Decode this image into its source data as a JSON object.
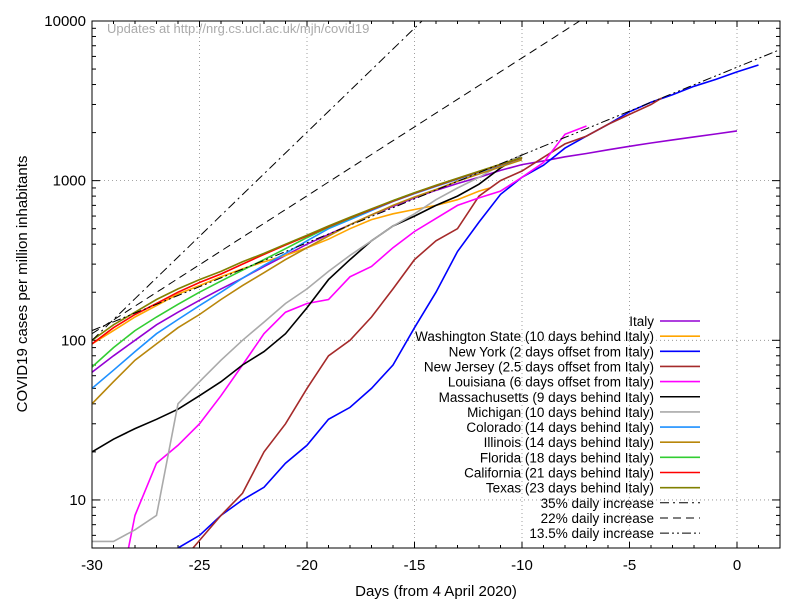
{
  "chart_data": {
    "type": "line",
    "yscale": "log",
    "xlabel": "Days (from 4 April 2020)",
    "ylabel": "COVID19 cases per million inhabitants",
    "annotation": "Updates at http://nrg.cs.ucl.ac.uk/mjh/covid19",
    "xlim": [
      -30,
      2
    ],
    "ylim": [
      5,
      10000
    ],
    "xticks": [
      -30,
      -25,
      -20,
      -15,
      -10,
      -5,
      0
    ],
    "yticks": [
      10,
      100,
      1000,
      10000
    ],
    "legend_position": "bottom-right",
    "series": [
      {
        "name": "Italy",
        "color": "#9400d3",
        "dash": "solid",
        "x": [
          -30,
          -29,
          -28,
          -27,
          -26,
          -25,
          -24,
          -23,
          -22,
          -21,
          -20,
          -19,
          -18,
          -17,
          -16,
          -15,
          -14,
          -13,
          -12,
          -11,
          -10,
          -9,
          -8,
          -7,
          -6,
          -5,
          -4,
          -3,
          -2,
          -1,
          0
        ],
        "y": [
          63,
          80,
          100,
          125,
          150,
          178,
          210,
          245,
          290,
          340,
          400,
          460,
          530,
          610,
          690,
          780,
          870,
          960,
          1050,
          1160,
          1260,
          1330,
          1410,
          1480,
          1560,
          1640,
          1720,
          1800,
          1880,
          1960,
          2050
        ]
      },
      {
        "name": "Washington  State (10 days behind Italy)",
        "color": "#ffa500",
        "dash": "solid",
        "x": [
          -30,
          -29,
          -28,
          -27,
          -26,
          -25,
          -24,
          -23,
          -22,
          -21,
          -20,
          -19,
          -18,
          -17,
          -16,
          -15,
          -14,
          -13,
          -12,
          -11.5
        ],
        "y": [
          95,
          115,
          140,
          165,
          195,
          220,
          250,
          280,
          310,
          340,
          380,
          430,
          500,
          570,
          620,
          660,
          700,
          760,
          860,
          900
        ]
      },
      {
        "name": "New York (2 days offset from Italy)",
        "color": "#0000ff",
        "dash": "solid",
        "x": [
          -26,
          -25,
          -24,
          -23,
          -22,
          -21,
          -20,
          -19,
          -18,
          -17,
          -16,
          -15,
          -14,
          -13,
          -12,
          -11,
          -10,
          -9,
          -8,
          -7,
          -6,
          -5,
          -4,
          -3,
          -2,
          -1,
          0,
          1
        ],
        "y": [
          5,
          6,
          8,
          10,
          12,
          17,
          22,
          32,
          38,
          50,
          70,
          120,
          200,
          360,
          550,
          820,
          1050,
          1250,
          1600,
          1900,
          2250,
          2700,
          3100,
          3450,
          3900,
          4300,
          4800,
          5300
        ]
      },
      {
        "name": "New Jersey (2.5 days offset from Italy)",
        "color": "#a52a2a",
        "dash": "solid",
        "x": [
          -25.3,
          -24,
          -23,
          -22,
          -21,
          -20,
          -19,
          -18,
          -17,
          -16,
          -15,
          -14,
          -13,
          -12,
          -11,
          -10,
          -9,
          -8,
          -7,
          -6,
          -5,
          -4,
          -3.5
        ],
        "y": [
          5,
          8,
          11,
          20,
          30,
          50,
          80,
          100,
          140,
          210,
          320,
          420,
          500,
          800,
          1000,
          1150,
          1400,
          1700,
          1900,
          2250,
          2600,
          3000,
          3300
        ]
      },
      {
        "name": "Louisiana (6 days offset from Italy)",
        "color": "#ff00ff",
        "dash": "solid",
        "x": [
          -28.3,
          -28,
          -27,
          -26,
          -25,
          -24,
          -23,
          -22,
          -21,
          -20,
          -19,
          -18,
          -17,
          -16,
          -15,
          -14,
          -13,
          -12,
          -11,
          -10,
          -9,
          -8,
          -7
        ],
        "y": [
          5,
          8,
          17,
          22,
          30,
          45,
          70,
          110,
          150,
          170,
          180,
          250,
          290,
          380,
          480,
          580,
          700,
          780,
          860,
          1050,
          1300,
          1950,
          2200
        ]
      },
      {
        "name": "Massachusetts (9 days behind Italy)",
        "color": "#000000",
        "dash": "solid",
        "x": [
          -30,
          -29,
          -28,
          -27,
          -26,
          -25,
          -24,
          -23,
          -22,
          -21,
          -20,
          -19,
          -18,
          -17,
          -16,
          -15,
          -14,
          -13,
          -12,
          -11,
          -10
        ],
        "y": [
          20,
          24,
          28,
          32,
          37,
          45,
          55,
          70,
          85,
          110,
          160,
          240,
          320,
          420,
          520,
          600,
          700,
          800,
          950,
          1200,
          1450
        ]
      },
      {
        "name": "Michigan (10 days behind Italy)",
        "color": "#aaaaaa",
        "dash": "solid",
        "x": [
          -30,
          -29,
          -28,
          -27,
          -26,
          -25,
          -24,
          -23,
          -22,
          -21,
          -20,
          -19,
          -18,
          -17,
          -16,
          -15,
          -14,
          -13,
          -12,
          -11,
          -10
        ],
        "y": [
          5.5,
          5.5,
          6.5,
          8,
          40,
          55,
          75,
          100,
          130,
          170,
          210,
          270,
          340,
          420,
          520,
          620,
          760,
          900,
          1050,
          1250,
          1450
        ]
      },
      {
        "name": "Colorado (14 days behind Italy)",
        "color": "#1e90ff",
        "dash": "solid",
        "x": [
          -30,
          -29,
          -28,
          -27,
          -26,
          -25,
          -24,
          -23,
          -22,
          -21,
          -20,
          -19,
          -18,
          -17,
          -16,
          -15,
          -14,
          -13,
          -12,
          -11,
          -10
        ],
        "y": [
          50,
          65,
          85,
          110,
          135,
          165,
          200,
          245,
          295,
          350,
          420,
          500,
          570,
          650,
          740,
          830,
          920,
          1020,
          1130,
          1250,
          1380
        ]
      },
      {
        "name": "Illinois (14 days behind Italy)",
        "color": "#b8860b",
        "dash": "solid",
        "x": [
          -30,
          -29,
          -28,
          -27,
          -26,
          -25,
          -24,
          -23,
          -22,
          -21,
          -20,
          -19,
          -18,
          -17,
          -16,
          -15,
          -14,
          -13,
          -12,
          -11,
          -10
        ],
        "y": [
          40,
          55,
          75,
          95,
          120,
          145,
          180,
          220,
          265,
          320,
          380,
          450,
          530,
          610,
          700,
          790,
          880,
          990,
          1100,
          1220,
          1350
        ]
      },
      {
        "name": "Florida (18 days behind Italy)",
        "color": "#32cd32",
        "dash": "solid",
        "x": [
          -30,
          -29,
          -28,
          -27,
          -26,
          -25,
          -24,
          -23,
          -22,
          -21,
          -20,
          -19,
          -18,
          -17,
          -16,
          -15,
          -14,
          -13,
          -12,
          -11,
          -10
        ],
        "y": [
          68,
          90,
          115,
          140,
          168,
          200,
          235,
          275,
          320,
          375,
          440,
          510,
          580,
          660,
          750,
          840,
          930,
          1030,
          1140,
          1260,
          1390
        ]
      },
      {
        "name": "California (21 days behind Italy)",
        "color": "#ff0000",
        "dash": "solid",
        "x": [
          -30,
          -29,
          -28,
          -27,
          -26,
          -25,
          -24,
          -23,
          -22,
          -21,
          -20,
          -19,
          -18,
          -17,
          -16,
          -15,
          -14,
          -13,
          -12,
          -11,
          -10
        ],
        "y": [
          95,
          120,
          145,
          170,
          200,
          230,
          260,
          300,
          345,
          395,
          450,
          515,
          585,
          660,
          745,
          835,
          930,
          1030,
          1140,
          1260,
          1390
        ]
      },
      {
        "name": "Texas (23 days behind Italy)",
        "color": "#808000",
        "dash": "solid",
        "x": [
          -30,
          -29,
          -28,
          -27,
          -26,
          -25,
          -24,
          -23,
          -22,
          -21,
          -20,
          -19,
          -18,
          -17,
          -16,
          -15,
          -14,
          -13,
          -12,
          -11,
          -10
        ],
        "y": [
          100,
          125,
          150,
          180,
          210,
          240,
          270,
          310,
          350,
          400,
          455,
          520,
          590,
          665,
          750,
          840,
          935,
          1035,
          1145,
          1265,
          1395
        ]
      },
      {
        "name": "35% daily increase",
        "color": "#000000",
        "dash": "dashdot",
        "rate": 1.35,
        "x0": -30,
        "y0": 100
      },
      {
        "name": "22% daily increase",
        "color": "#000000",
        "dash": "dashed",
        "rate": 1.22,
        "x0": -30,
        "y0": 110
      },
      {
        "name": "13.5% daily increase",
        "color": "#000000",
        "dash": "dashdotdot",
        "rate": 1.135,
        "x0": -30,
        "y0": 115
      }
    ]
  }
}
